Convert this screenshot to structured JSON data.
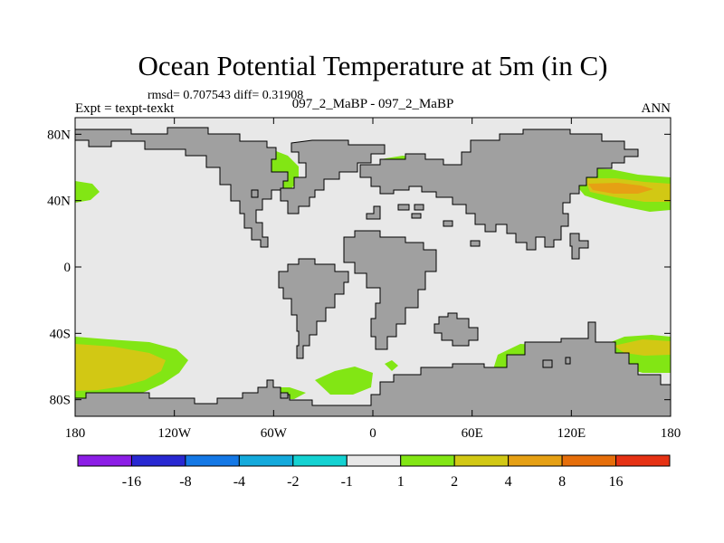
{
  "chart_data": {
    "type": "heatmap",
    "title": "Ocean Potential Temperature at 5m (in C)",
    "stats_line": "rmsd= 0.707543 diff= 0.31908",
    "left_label": "Expt = texpt-texkt",
    "center_label": "097_2_MaBP - 097_2_MaBP",
    "right_label": "ANN",
    "x_range": [
      -180,
      180
    ],
    "y_range": [
      -90,
      90
    ],
    "x_ticks": [
      {
        "value": -180,
        "label": "180"
      },
      {
        "value": -120,
        "label": "120W"
      },
      {
        "value": -60,
        "label": "60W"
      },
      {
        "value": 0,
        "label": "0"
      },
      {
        "value": 60,
        "label": "60E"
      },
      {
        "value": 120,
        "label": "120E"
      },
      {
        "value": 180,
        "label": "180"
      }
    ],
    "y_ticks": [
      {
        "value": 80,
        "label": "80N"
      },
      {
        "value": 40,
        "label": "40N"
      },
      {
        "value": 0,
        "label": "0"
      },
      {
        "value": -40,
        "label": "40S"
      },
      {
        "value": -80,
        "label": "80S"
      }
    ],
    "colorbar": {
      "colors": [
        "#8c1ee6",
        "#2828d2",
        "#1478e6",
        "#14aadc",
        "#14d2d2",
        "#e8e8e8",
        "#82e614",
        "#d2c814",
        "#e6a014",
        "#e66e0a",
        "#e63214"
      ],
      "boundary_labels": [
        "-16",
        "-8",
        "-4",
        "-2",
        "-1",
        "1",
        "2",
        "4",
        "8",
        "16"
      ]
    }
  },
  "colors": {
    "land": "#a0a0a0",
    "ocean": "#e8e8e8",
    "green": "#82e614",
    "yellow": "#d2c814",
    "orange": "#e6a014",
    "red": "#e66e0a"
  }
}
